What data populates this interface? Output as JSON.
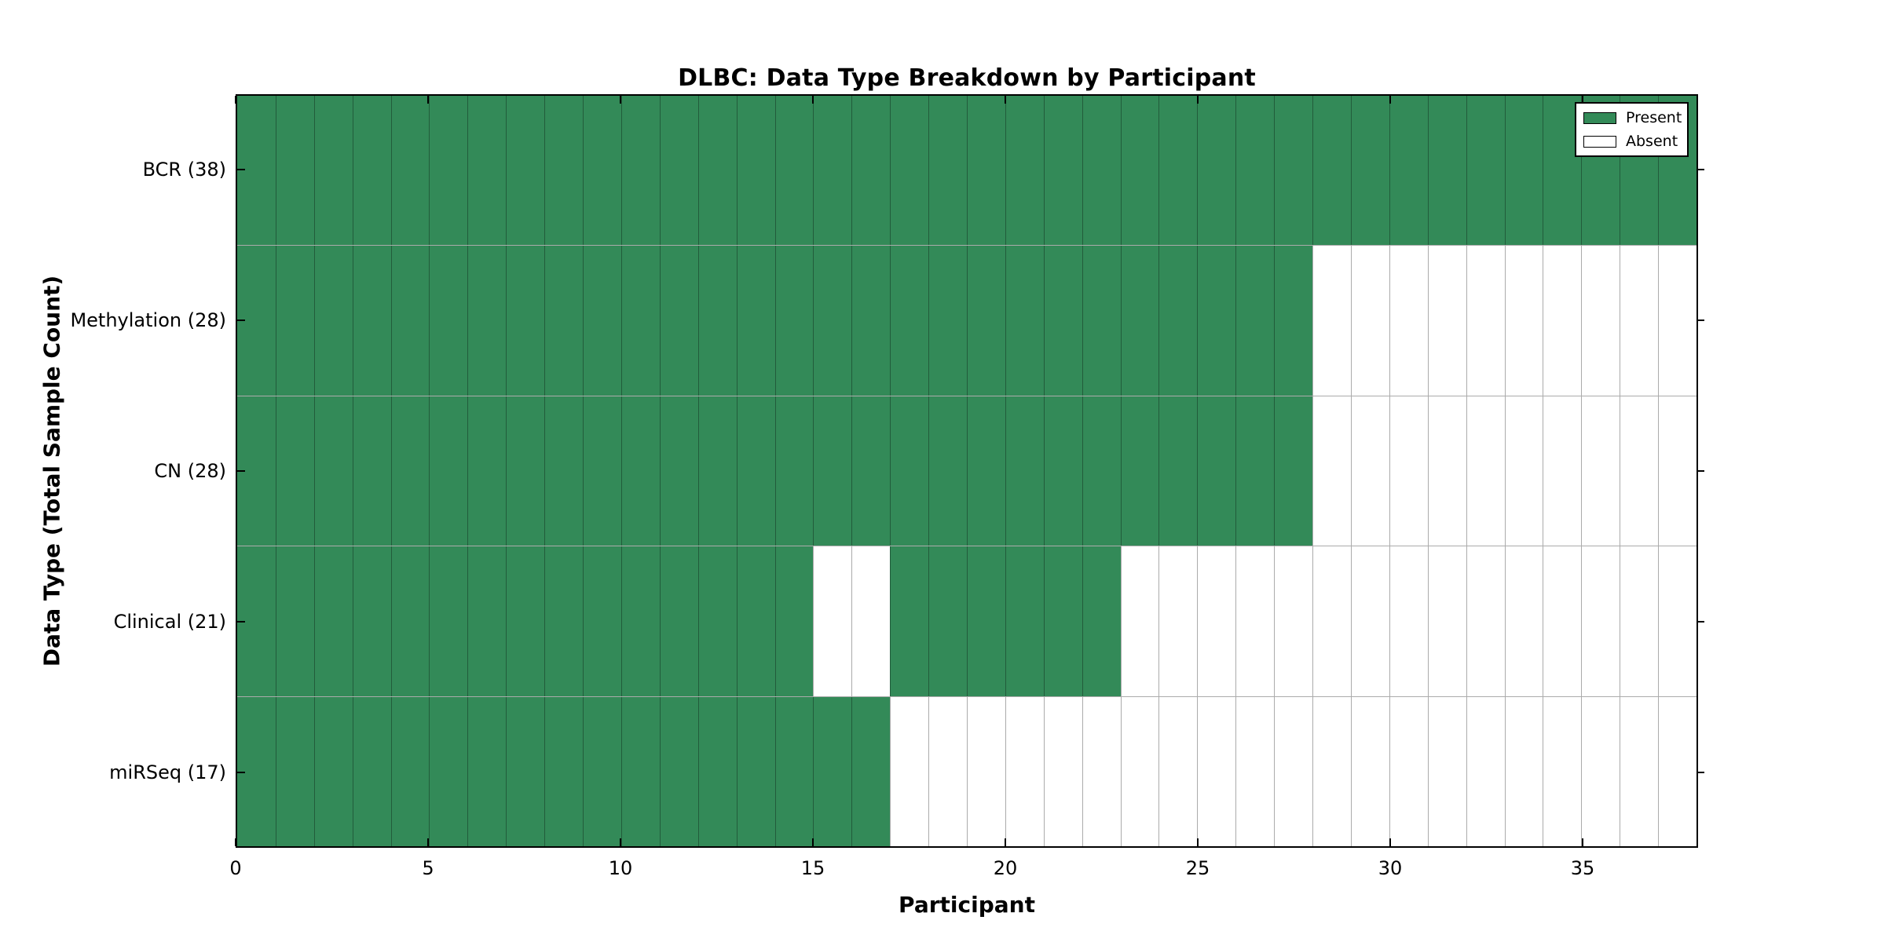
{
  "figure": {
    "title": "DLBC: Data Type Breakdown by Participant",
    "x_axis_label": "Participant",
    "y_axis_label": "Data Type (Total Sample Count)"
  },
  "legend": {
    "items": [
      {
        "label": "Present",
        "color": "#338a58"
      },
      {
        "label": "Absent",
        "color": "#ffffff"
      }
    ]
  },
  "chart_data": {
    "type": "heatmap",
    "title": "DLBC: Data Type Breakdown by Participant",
    "xlabel": "Participant",
    "ylabel": "Data Type (Total Sample Count)",
    "x_range": [
      0,
      38
    ],
    "x_ticks": [
      0,
      5,
      10,
      15,
      20,
      25,
      30,
      35
    ],
    "n_participants": 38,
    "rows": [
      {
        "label": "BCR (38)",
        "data_type": "BCR",
        "total_samples": 38,
        "present_ranges": [
          [
            0,
            38
          ]
        ]
      },
      {
        "label": "Methylation (28)",
        "data_type": "Methylation",
        "total_samples": 28,
        "present_ranges": [
          [
            0,
            28
          ]
        ]
      },
      {
        "label": "CN (28)",
        "data_type": "CN",
        "total_samples": 28,
        "present_ranges": [
          [
            0,
            28
          ]
        ]
      },
      {
        "label": "Clinical (21)",
        "data_type": "Clinical",
        "total_samples": 21,
        "present_ranges": [
          [
            0,
            15
          ],
          [
            17,
            23
          ]
        ]
      },
      {
        "label": "miRSeq (17)",
        "data_type": "miRSeq",
        "total_samples": 17,
        "present_ranges": [
          [
            0,
            17
          ]
        ]
      }
    ],
    "legend": [
      {
        "label": "Present",
        "color": "#338a58"
      },
      {
        "label": "Absent",
        "color": "#ffffff"
      }
    ],
    "legend_position": "upper right",
    "grid": true,
    "colors": {
      "present": "#338a58",
      "absent": "#ffffff",
      "grid_line": "rgba(0,0,0,0.33)",
      "axis": "#000000",
      "background": "#ffffff"
    }
  }
}
